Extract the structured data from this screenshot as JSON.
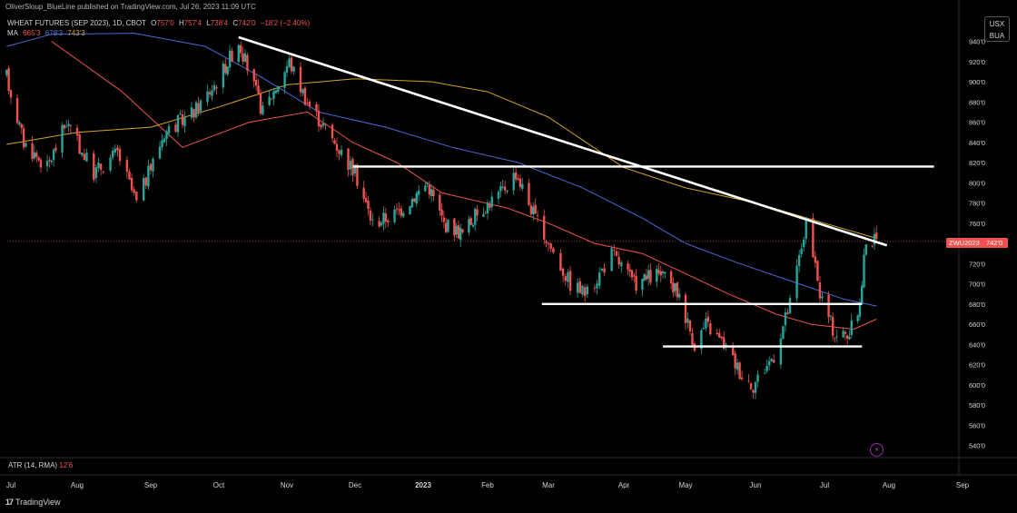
{
  "header": {
    "published": "OliverSloup_BlueLine published on TradingView.com, Jul 26, 2023 11:09 UTC",
    "symbol_title": "WHEAT FUTURES (SEP 2023), 1D, CBOT",
    "ohlc": {
      "o_label": "O",
      "o": "757'0",
      "h_label": "H",
      "h": "757'4",
      "l_label": "L",
      "l": "738'4",
      "c_label": "C",
      "c": "742'0",
      "change": "−18'2 (−2.40%)"
    },
    "ma_label": "MA",
    "ma_values": [
      "665'3",
      "678'3",
      "743'3"
    ]
  },
  "currency_badge": {
    "line1": "USX",
    "line2": "BUA"
  },
  "last_price": {
    "ticker": "ZWU2023",
    "price": "742'0",
    "value": 742
  },
  "price_axis": {
    "labels": [
      "940'0",
      "920'0",
      "900'0",
      "880'0",
      "860'0",
      "840'0",
      "820'0",
      "800'0",
      "780'0",
      "760'0",
      "740'0",
      "720'0",
      "700'0",
      "680'0",
      "660'0",
      "640'0",
      "620'0",
      "600'0",
      "580'0",
      "560'0",
      "540'0"
    ],
    "values": [
      940,
      920,
      900,
      880,
      860,
      840,
      820,
      800,
      780,
      760,
      740,
      720,
      700,
      680,
      660,
      640,
      620,
      600,
      580,
      560,
      540
    ]
  },
  "time_axis": [
    "Jul",
    "Aug",
    "Sep",
    "Oct",
    "Nov",
    "Dec",
    "2023",
    "Feb",
    "Mar",
    "Apr",
    "May",
    "Jun",
    "Jul",
    "Aug",
    "Sep"
  ],
  "atr": {
    "label": "ATR (14, RMA)",
    "value": "12'6"
  },
  "footer": {
    "brand": "TradingView"
  },
  "colors": {
    "up": "#26a69a",
    "down": "#ef5350",
    "ma_fast": "#ef5350",
    "ma_mid": "#4a6ad8",
    "ma_slow": "#d4a520",
    "trendline": "#ffffff",
    "bg": "#000000"
  },
  "chart_data": {
    "type": "candlestick",
    "title": "WHEAT FUTURES (SEP 2023), 1D, CBOT",
    "ylim": [
      530,
      950
    ],
    "x_ticks": [
      "Jul",
      "Aug",
      "Sep",
      "Oct",
      "Nov",
      "Dec",
      "2023",
      "Feb",
      "Mar",
      "Apr",
      "May",
      "Jun",
      "Jul",
      "Aug",
      "Sep"
    ],
    "price_path": [
      {
        "date": "2022-06-29",
        "price": 905
      },
      {
        "date": "2022-07-07",
        "price": 840
      },
      {
        "date": "2022-07-18",
        "price": 815
      },
      {
        "date": "2022-07-27",
        "price": 860
      },
      {
        "date": "2022-08-08",
        "price": 810
      },
      {
        "date": "2022-08-18",
        "price": 830
      },
      {
        "date": "2022-08-26",
        "price": 780
      },
      {
        "date": "2022-09-07",
        "price": 850
      },
      {
        "date": "2022-09-20",
        "price": 870
      },
      {
        "date": "2022-09-30",
        "price": 900
      },
      {
        "date": "2022-10-10",
        "price": 940
      },
      {
        "date": "2022-10-21",
        "price": 870
      },
      {
        "date": "2022-11-02",
        "price": 920
      },
      {
        "date": "2022-11-10",
        "price": 880
      },
      {
        "date": "2022-11-22",
        "price": 840
      },
      {
        "date": "2022-12-01",
        "price": 810
      },
      {
        "date": "2022-12-09",
        "price": 760
      },
      {
        "date": "2022-12-20",
        "price": 770
      },
      {
        "date": "2023-01-03",
        "price": 800
      },
      {
        "date": "2023-01-11",
        "price": 760
      },
      {
        "date": "2023-01-20",
        "price": 750
      },
      {
        "date": "2023-01-27",
        "price": 770
      },
      {
        "date": "2023-02-07",
        "price": 790
      },
      {
        "date": "2023-02-14",
        "price": 810
      },
      {
        "date": "2023-02-24",
        "price": 760
      },
      {
        "date": "2023-03-01",
        "price": 740
      },
      {
        "date": "2023-03-10",
        "price": 700
      },
      {
        "date": "2023-03-17",
        "price": 690
      },
      {
        "date": "2023-03-27",
        "price": 730
      },
      {
        "date": "2023-04-06",
        "price": 700
      },
      {
        "date": "2023-04-18",
        "price": 710
      },
      {
        "date": "2023-04-28",
        "price": 690
      },
      {
        "date": "2023-05-05",
        "price": 640
      },
      {
        "date": "2023-05-10",
        "price": 660
      },
      {
        "date": "2023-05-18",
        "price": 640
      },
      {
        "date": "2023-05-26",
        "price": 610
      },
      {
        "date": "2023-05-31",
        "price": 600
      },
      {
        "date": "2023-06-09",
        "price": 630
      },
      {
        "date": "2023-06-16",
        "price": 680
      },
      {
        "date": "2023-06-23",
        "price": 760
      },
      {
        "date": "2023-06-29",
        "price": 690
      },
      {
        "date": "2023-07-06",
        "price": 650
      },
      {
        "date": "2023-07-13",
        "price": 650
      },
      {
        "date": "2023-07-18",
        "price": 680
      },
      {
        "date": "2023-07-21",
        "price": 745
      },
      {
        "date": "2023-07-26",
        "price": 742
      }
    ],
    "moving_averages": [
      {
        "name": "MA",
        "value": "665'3",
        "color": "#ef5350",
        "points": [
          {
            "date": "2022-07-20",
            "price": 940
          },
          {
            "date": "2022-08-20",
            "price": 890
          },
          {
            "date": "2022-09-15",
            "price": 835
          },
          {
            "date": "2022-10-15",
            "price": 860
          },
          {
            "date": "2022-11-10",
            "price": 870
          },
          {
            "date": "2022-11-30",
            "price": 840
          },
          {
            "date": "2022-12-20",
            "price": 820
          },
          {
            "date": "2023-01-10",
            "price": 790
          },
          {
            "date": "2023-02-10",
            "price": 775
          },
          {
            "date": "2023-03-01",
            "price": 760
          },
          {
            "date": "2023-03-20",
            "price": 740
          },
          {
            "date": "2023-04-10",
            "price": 730
          },
          {
            "date": "2023-05-01",
            "price": 710
          },
          {
            "date": "2023-05-20",
            "price": 690
          },
          {
            "date": "2023-06-10",
            "price": 670
          },
          {
            "date": "2023-06-25",
            "price": 660
          },
          {
            "date": "2023-07-15",
            "price": 655
          },
          {
            "date": "2023-07-26",
            "price": 665
          }
        ]
      },
      {
        "name": "MA",
        "value": "678'3",
        "color": "#4a6ad8",
        "points": [
          {
            "date": "2022-06-29",
            "price": 935
          },
          {
            "date": "2022-07-20",
            "price": 947
          },
          {
            "date": "2022-08-25",
            "price": 948
          },
          {
            "date": "2022-09-25",
            "price": 935
          },
          {
            "date": "2022-10-20",
            "price": 905
          },
          {
            "date": "2022-11-15",
            "price": 870
          },
          {
            "date": "2022-12-15",
            "price": 855
          },
          {
            "date": "2023-01-15",
            "price": 835
          },
          {
            "date": "2023-02-15",
            "price": 820
          },
          {
            "date": "2023-03-15",
            "price": 795
          },
          {
            "date": "2023-04-10",
            "price": 765
          },
          {
            "date": "2023-05-01",
            "price": 740
          },
          {
            "date": "2023-05-25",
            "price": 720
          },
          {
            "date": "2023-06-20",
            "price": 700
          },
          {
            "date": "2023-07-10",
            "price": 685
          },
          {
            "date": "2023-07-26",
            "price": 678
          }
        ]
      },
      {
        "name": "MA",
        "value": "743'3",
        "color": "#d4a520",
        "points": [
          {
            "date": "2022-06-29",
            "price": 838
          },
          {
            "date": "2022-08-01",
            "price": 850
          },
          {
            "date": "2022-09-01",
            "price": 855
          },
          {
            "date": "2022-10-01",
            "price": 875
          },
          {
            "date": "2022-11-01",
            "price": 897
          },
          {
            "date": "2022-12-01",
            "price": 903
          },
          {
            "date": "2023-01-05",
            "price": 900
          },
          {
            "date": "2023-02-01",
            "price": 890
          },
          {
            "date": "2023-03-01",
            "price": 865
          },
          {
            "date": "2023-04-01",
            "price": 815
          },
          {
            "date": "2023-05-01",
            "price": 795
          },
          {
            "date": "2023-06-01",
            "price": 780
          },
          {
            "date": "2023-07-01",
            "price": 760
          },
          {
            "date": "2023-07-26",
            "price": 745
          }
        ]
      }
    ],
    "trendlines": [
      {
        "kind": "resistance",
        "from": {
          "date": "2022-10-10",
          "price": 944
        },
        "to": {
          "date": "2023-07-31",
          "price": 738
        }
      }
    ],
    "horizontal_levels": [
      {
        "price": 816,
        "from": "2022-11-30",
        "to": "2023-08-20"
      },
      {
        "price": 680,
        "from": "2023-02-26",
        "to": "2023-07-19"
      },
      {
        "price": 638,
        "from": "2023-04-20",
        "to": "2023-07-19"
      }
    ],
    "last_price_line": 742,
    "lower_pane": {
      "indicator": "ATR (14, RMA)",
      "value": "12'6"
    }
  }
}
